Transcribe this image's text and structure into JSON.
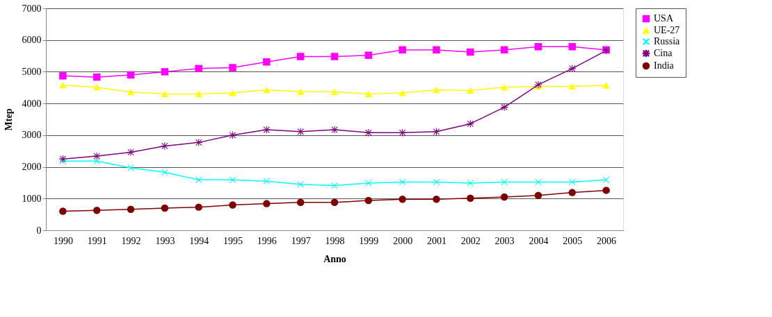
{
  "chart_data": {
    "type": "line",
    "xlabel": "Anno",
    "ylabel": "Mtep",
    "categories": [
      "1990",
      "1991",
      "1992",
      "1993",
      "1994",
      "1995",
      "1996",
      "1997",
      "1998",
      "1999",
      "2000",
      "2001",
      "2002",
      "2003",
      "2004",
      "2005",
      "2006"
    ],
    "ylim": [
      0,
      7000
    ],
    "yticks": [
      0,
      1000,
      2000,
      3000,
      4000,
      5000,
      6000,
      7000
    ],
    "grid": "y",
    "legend": "right",
    "line_style": "solid",
    "series": [
      {
        "name": "USA",
        "color": "#ff00ff",
        "marker": "square",
        "values": [
          4870,
          4830,
          4900,
          5000,
          5100,
          5130,
          5310,
          5480,
          5480,
          5520,
          5690,
          5690,
          5620,
          5690,
          5790,
          5790,
          5690
        ]
      },
      {
        "name": "UE-27",
        "color": "#ffff00",
        "marker": "triangle",
        "values": [
          4580,
          4510,
          4360,
          4300,
          4300,
          4330,
          4430,
          4370,
          4370,
          4300,
          4330,
          4430,
          4410,
          4510,
          4540,
          4540,
          4570
        ]
      },
      {
        "name": "Russia",
        "color": "#00ffff",
        "marker": "cross",
        "values": [
          2180,
          2180,
          1970,
          1830,
          1590,
          1590,
          1550,
          1450,
          1410,
          1490,
          1520,
          1520,
          1490,
          1520,
          1520,
          1520,
          1590
        ]
      },
      {
        "name": "Cina",
        "color": "#800080",
        "marker": "star",
        "values": [
          2250,
          2340,
          2460,
          2660,
          2770,
          3000,
          3170,
          3110,
          3170,
          3080,
          3080,
          3110,
          3360,
          3880,
          4590,
          5100,
          5670
        ]
      },
      {
        "name": "India",
        "color": "#800000",
        "marker": "circle",
        "values": [
          600,
          630,
          660,
          700,
          730,
          800,
          840,
          880,
          880,
          940,
          980,
          980,
          1010,
          1050,
          1100,
          1190,
          1260
        ]
      }
    ]
  }
}
